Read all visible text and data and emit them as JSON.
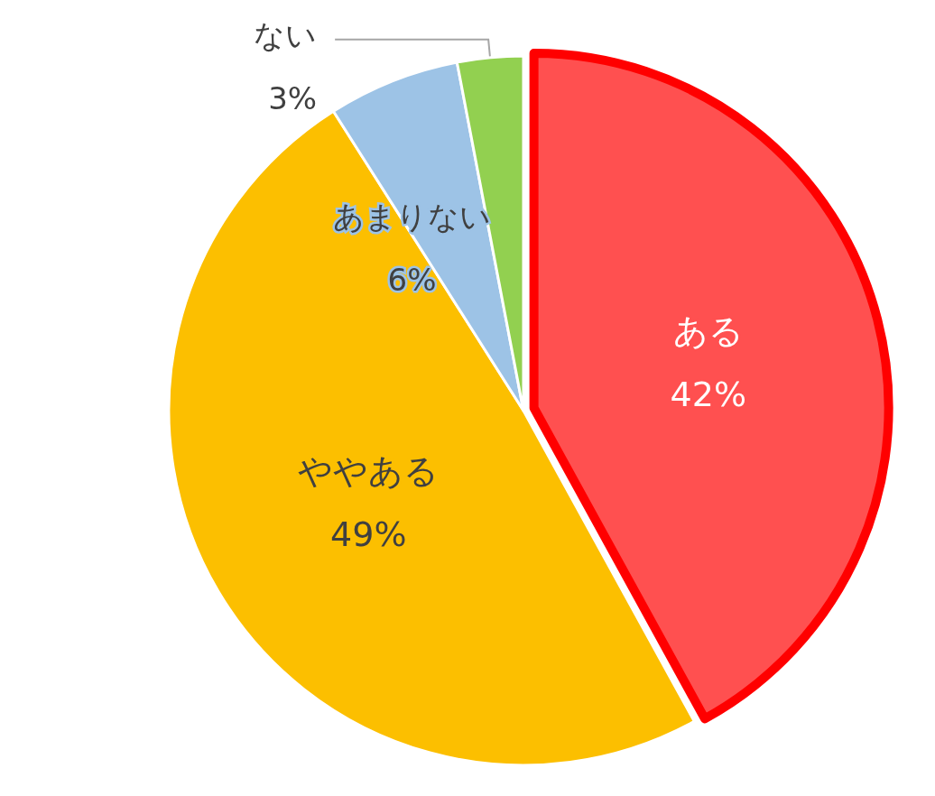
{
  "chart_data": {
    "type": "pie",
    "categories": [
      "ある",
      "ややある",
      "あまりない",
      "ない"
    ],
    "values": [
      42,
      49,
      6,
      3
    ],
    "colors": [
      "#ff5050",
      "#fcbf00",
      "#9dc3e6",
      "#92d050"
    ],
    "value_labels": [
      "42%",
      "49%",
      "6%",
      "3%"
    ],
    "legend": false
  }
}
